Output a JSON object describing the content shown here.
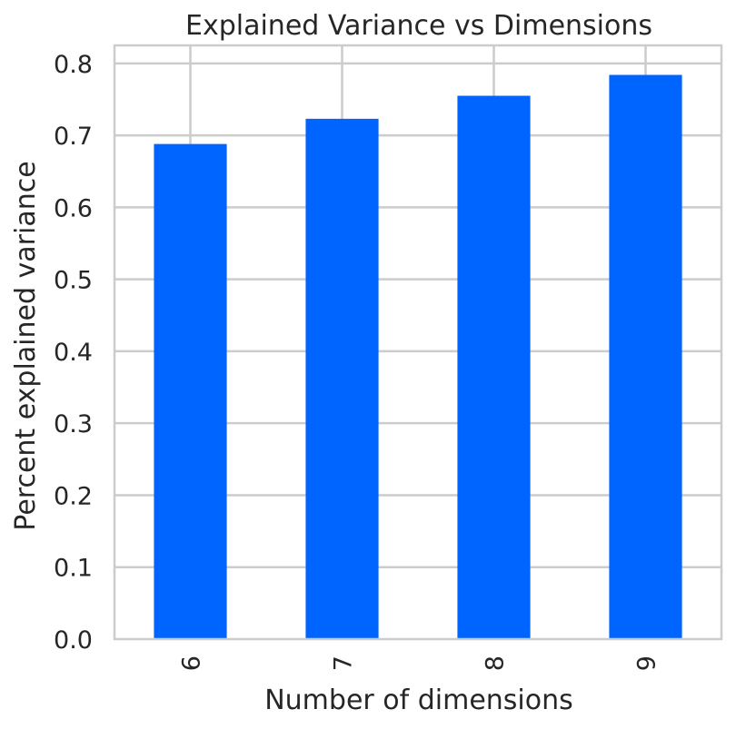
{
  "chart_data": {
    "type": "bar",
    "title": "Explained Variance vs Dimensions",
    "xlabel": "Number of dimensions",
    "ylabel": "Percent explained variance",
    "categories": [
      "6",
      "7",
      "8",
      "9"
    ],
    "values": [
      0.688,
      0.723,
      0.755,
      0.784
    ],
    "ylim": [
      0,
      0.825
    ],
    "yticks": [
      0.0,
      0.1,
      0.2,
      0.3,
      0.4,
      0.5,
      0.6,
      0.7,
      0.8
    ],
    "ytick_labels": [
      "0.0",
      "0.1",
      "0.2",
      "0.3",
      "0.4",
      "0.5",
      "0.6",
      "0.7",
      "0.8"
    ],
    "x_tick_rotation": "vertical",
    "bar_color": "#0064ff",
    "grid": true,
    "legend": "none"
  }
}
